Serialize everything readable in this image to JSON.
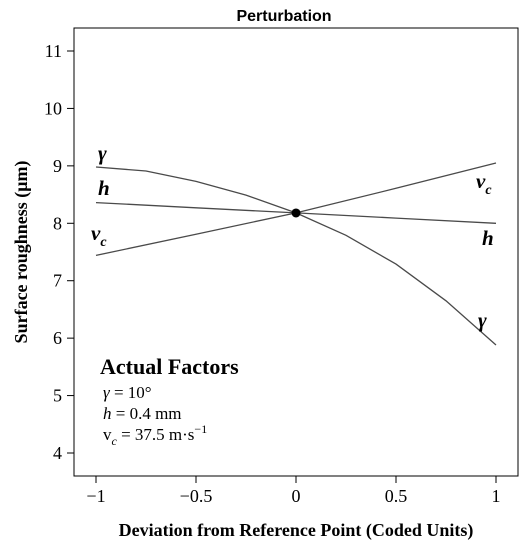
{
  "chart_data": {
    "type": "line",
    "title": "Perturbation",
    "xlabel": "Deviation from Reference Point (Coded Units)",
    "ylabel": "Surface roughness (μm)",
    "xlim": [
      -1,
      1
    ],
    "ylim": [
      3.8,
      11.3
    ],
    "x_ticks": [
      -1,
      -0.5,
      0,
      0.5,
      1
    ],
    "x_tick_labels": [
      "−1",
      "−0.5",
      "0",
      "0.5",
      "1"
    ],
    "y_ticks": [
      4,
      5,
      6,
      7,
      8,
      9,
      10,
      11
    ],
    "y_tick_labels": [
      "4",
      "5",
      "6",
      "7",
      "8",
      "9",
      "10",
      "11"
    ],
    "grid": false,
    "reference_point": {
      "x": 0,
      "y": 8.18
    },
    "series": [
      {
        "name": "γ",
        "x": [
          -1,
          -0.75,
          -0.5,
          -0.25,
          0,
          0.25,
          0.5,
          0.75,
          1
        ],
        "y": [
          8.98,
          8.91,
          8.73,
          8.49,
          8.18,
          7.79,
          7.29,
          6.65,
          5.88
        ]
      },
      {
        "name": "h",
        "x": [
          -1,
          -0.5,
          0,
          0.5,
          1
        ],
        "y": [
          8.36,
          8.27,
          8.18,
          8.09,
          8.0
        ]
      },
      {
        "name": "v",
        "subscript": "c",
        "x": [
          -1,
          -0.5,
          0,
          0.5,
          1
        ],
        "y": [
          7.44,
          7.81,
          8.18,
          8.61,
          9.05
        ]
      }
    ],
    "legend": {
      "title": "Actual Factors",
      "entries": [
        {
          "symbol": "γ",
          "value": " = 10°"
        },
        {
          "symbol": "h",
          "value": " = 0.4 mm"
        },
        {
          "symbol": "v",
          "subscript": "c",
          "value": " = 37.5 m·s",
          "superscript": "−1"
        }
      ],
      "position": "bottom-left"
    }
  }
}
